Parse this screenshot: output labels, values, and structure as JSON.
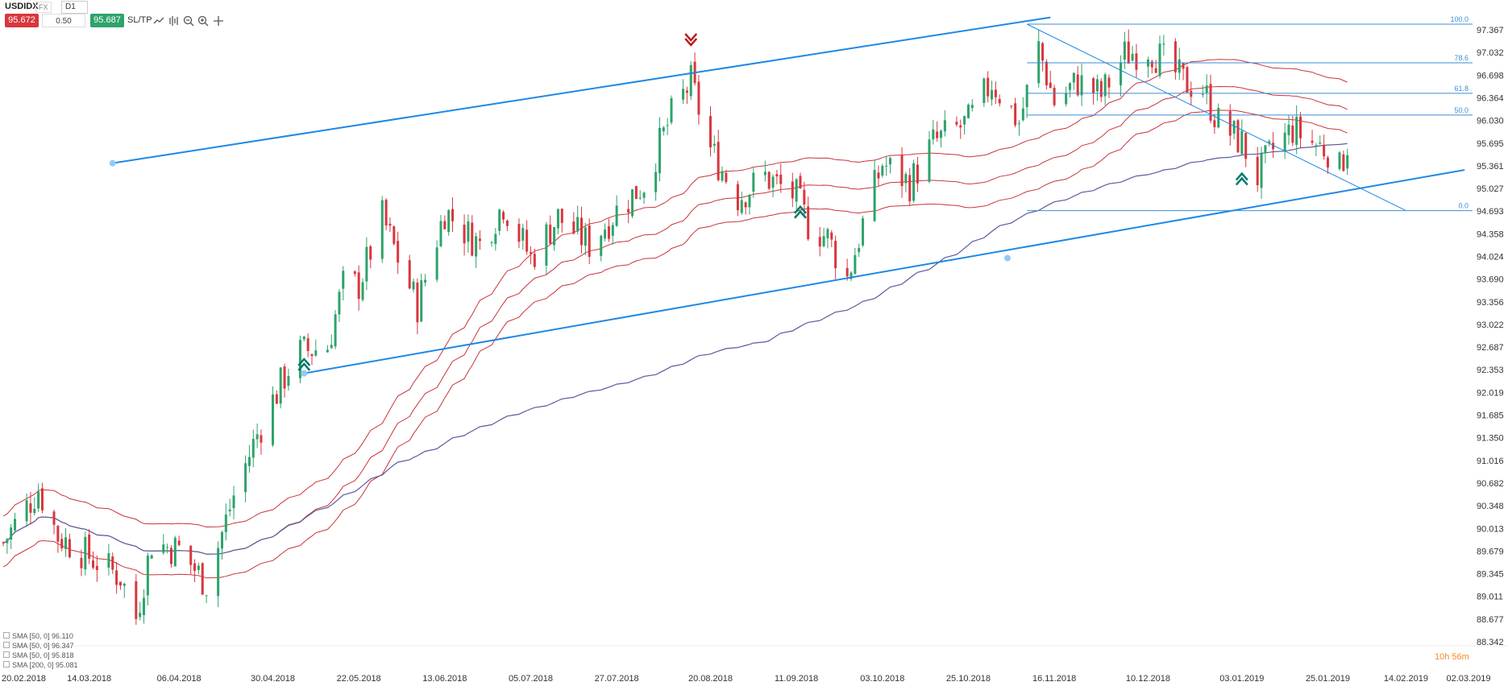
{
  "toolbar": {
    "symbol": "USDIDX",
    "type_tag": "FX",
    "timeframe": "D1",
    "sell_price": "95.672",
    "quantity": "0.50",
    "buy_price": "95.687",
    "sltp_label": "SL/TP",
    "icons": [
      "chart-type-icon",
      "indicators-icon",
      "zoom-out-icon",
      "zoom-in-icon",
      "crosshair-icon"
    ]
  },
  "legend": [
    "SMA [50, 0] 96.110",
    "SMA [50, 0] 96.347",
    "SMA [50, 0] 95.818",
    "SMA [200, 0] 95.081"
  ],
  "timer": "10h 56m",
  "colors": {
    "bull": "#2ea36b",
    "bear": "#d9363e",
    "sma_red": "#c8343b",
    "sma200": "#5b5a9e",
    "trend": "#1e88e5",
    "fib": "#3b8ed8"
  },
  "chart_data": {
    "type": "candlestick",
    "title": "USDIDX D1",
    "y_ticks": [
      "97.367",
      "97.032",
      "96.698",
      "96.364",
      "96.030",
      "95.695",
      "95.361",
      "95.027",
      "94.693",
      "94.358",
      "94.024",
      "93.690",
      "93.356",
      "93.022",
      "92.687",
      "92.353",
      "92.019",
      "91.685",
      "91.350",
      "91.016",
      "90.682",
      "90.348",
      "90.013",
      "89.679",
      "89.345",
      "89.011",
      "88.677",
      "88.342"
    ],
    "ylim": [
      88.342,
      97.367
    ],
    "x_ticks": [
      "20.02.2018",
      "14.03.2018",
      "06.04.2018",
      "30.04.2018",
      "22.05.2018",
      "13.06.2018",
      "05.07.2018",
      "27.07.2018",
      "20.08.2018",
      "11.09.2018",
      "03.10.2018",
      "25.10.2018",
      "16.11.2018",
      "10.12.2018",
      "03.01.2019",
      "25.01.2019",
      "14.02.2019",
      "02.03.2019"
    ],
    "price_path": [
      [
        "20.02.2018",
        89.8
      ],
      [
        "01.03.2018",
        90.6
      ],
      [
        "06.03.2018",
        89.9
      ],
      [
        "14.03.2018",
        89.6
      ],
      [
        "22.03.2018",
        89.3
      ],
      [
        "26.03.2018",
        88.7
      ],
      [
        "30.03.2018",
        89.8
      ],
      [
        "06.04.2018",
        89.7
      ],
      [
        "13.04.2018",
        89.2
      ],
      [
        "20.04.2018",
        90.5
      ],
      [
        "26.04.2018",
        91.4
      ],
      [
        "30.04.2018",
        91.9
      ],
      [
        "06.05.2018",
        92.6
      ],
      [
        "14.05.2018",
        92.7
      ],
      [
        "18.05.2018",
        93.6
      ],
      [
        "22.05.2018",
        93.6
      ],
      [
        "28.05.2018",
        94.6
      ],
      [
        "01.06.2018",
        94.0
      ],
      [
        "06.06.2018",
        93.3
      ],
      [
        "13.06.2018",
        94.7
      ],
      [
        "18.06.2018",
        94.4
      ],
      [
        "22.06.2018",
        94.2
      ],
      [
        "28.06.2018",
        94.8
      ],
      [
        "05.07.2018",
        94.0
      ],
      [
        "12.07.2018",
        94.6
      ],
      [
        "20.07.2018",
        94.2
      ],
      [
        "27.07.2018",
        94.7
      ],
      [
        "03.08.2018",
        95.1
      ],
      [
        "10.08.2018",
        96.1
      ],
      [
        "15.08.2018",
        96.6
      ],
      [
        "20.08.2018",
        95.6
      ],
      [
        "27.08.2018",
        94.9
      ],
      [
        "03.09.2018",
        95.2
      ],
      [
        "11.09.2018",
        94.9
      ],
      [
        "14.09.2018",
        94.5
      ],
      [
        "19.09.2018",
        94.3
      ],
      [
        "24.09.2018",
        93.7
      ],
      [
        "28.09.2018",
        94.5
      ],
      [
        "03.10.2018",
        95.4
      ],
      [
        "10.10.2018",
        95.1
      ],
      [
        "16.10.2018",
        95.7
      ],
      [
        "25.10.2018",
        96.0
      ],
      [
        "31.10.2018",
        96.6
      ],
      [
        "07.11.2018",
        96.0
      ],
      [
        "12.11.2018",
        97.1
      ],
      [
        "16.11.2018",
        96.3
      ],
      [
        "22.11.2018",
        96.6
      ],
      [
        "28.11.2018",
        96.4
      ],
      [
        "04.12.2018",
        97.0
      ],
      [
        "10.12.2018",
        97.1
      ],
      [
        "14.12.2018",
        96.9
      ],
      [
        "19.12.2018",
        96.6
      ],
      [
        "24.12.2018",
        96.5
      ],
      [
        "28.12.2018",
        96.0
      ],
      [
        "03.01.2019",
        95.7
      ],
      [
        "07.01.2019",
        95.2
      ],
      [
        "11.01.2019",
        95.6
      ],
      [
        "16.01.2019",
        95.9
      ],
      [
        "21.01.2019",
        95.7
      ],
      [
        "25.01.2019",
        95.6
      ],
      [
        "28.01.2019",
        95.3
      ],
      [
        "30.01.2019",
        95.69
      ]
    ],
    "sma_labels": [
      "SMA [50, 0] 96.110",
      "SMA [50, 0] 96.347",
      "SMA [50, 0] 95.818",
      "SMA [200, 0] 95.081"
    ],
    "fibonacci": [
      {
        "level": "100.0",
        "price": 97.45
      },
      {
        "level": "78.6",
        "price": 96.88
      },
      {
        "level": "61.8",
        "price": 96.43
      },
      {
        "level": "50.0",
        "price": 96.11
      },
      {
        "level": "0.0",
        "price": 94.7
      }
    ],
    "signals": [
      {
        "type": "sell",
        "date": "15.08.2018"
      },
      {
        "type": "buy",
        "date": "08.05.2018"
      },
      {
        "type": "buy",
        "date": "12.09.2018"
      },
      {
        "type": "buy",
        "date": "03.01.2019"
      }
    ]
  }
}
